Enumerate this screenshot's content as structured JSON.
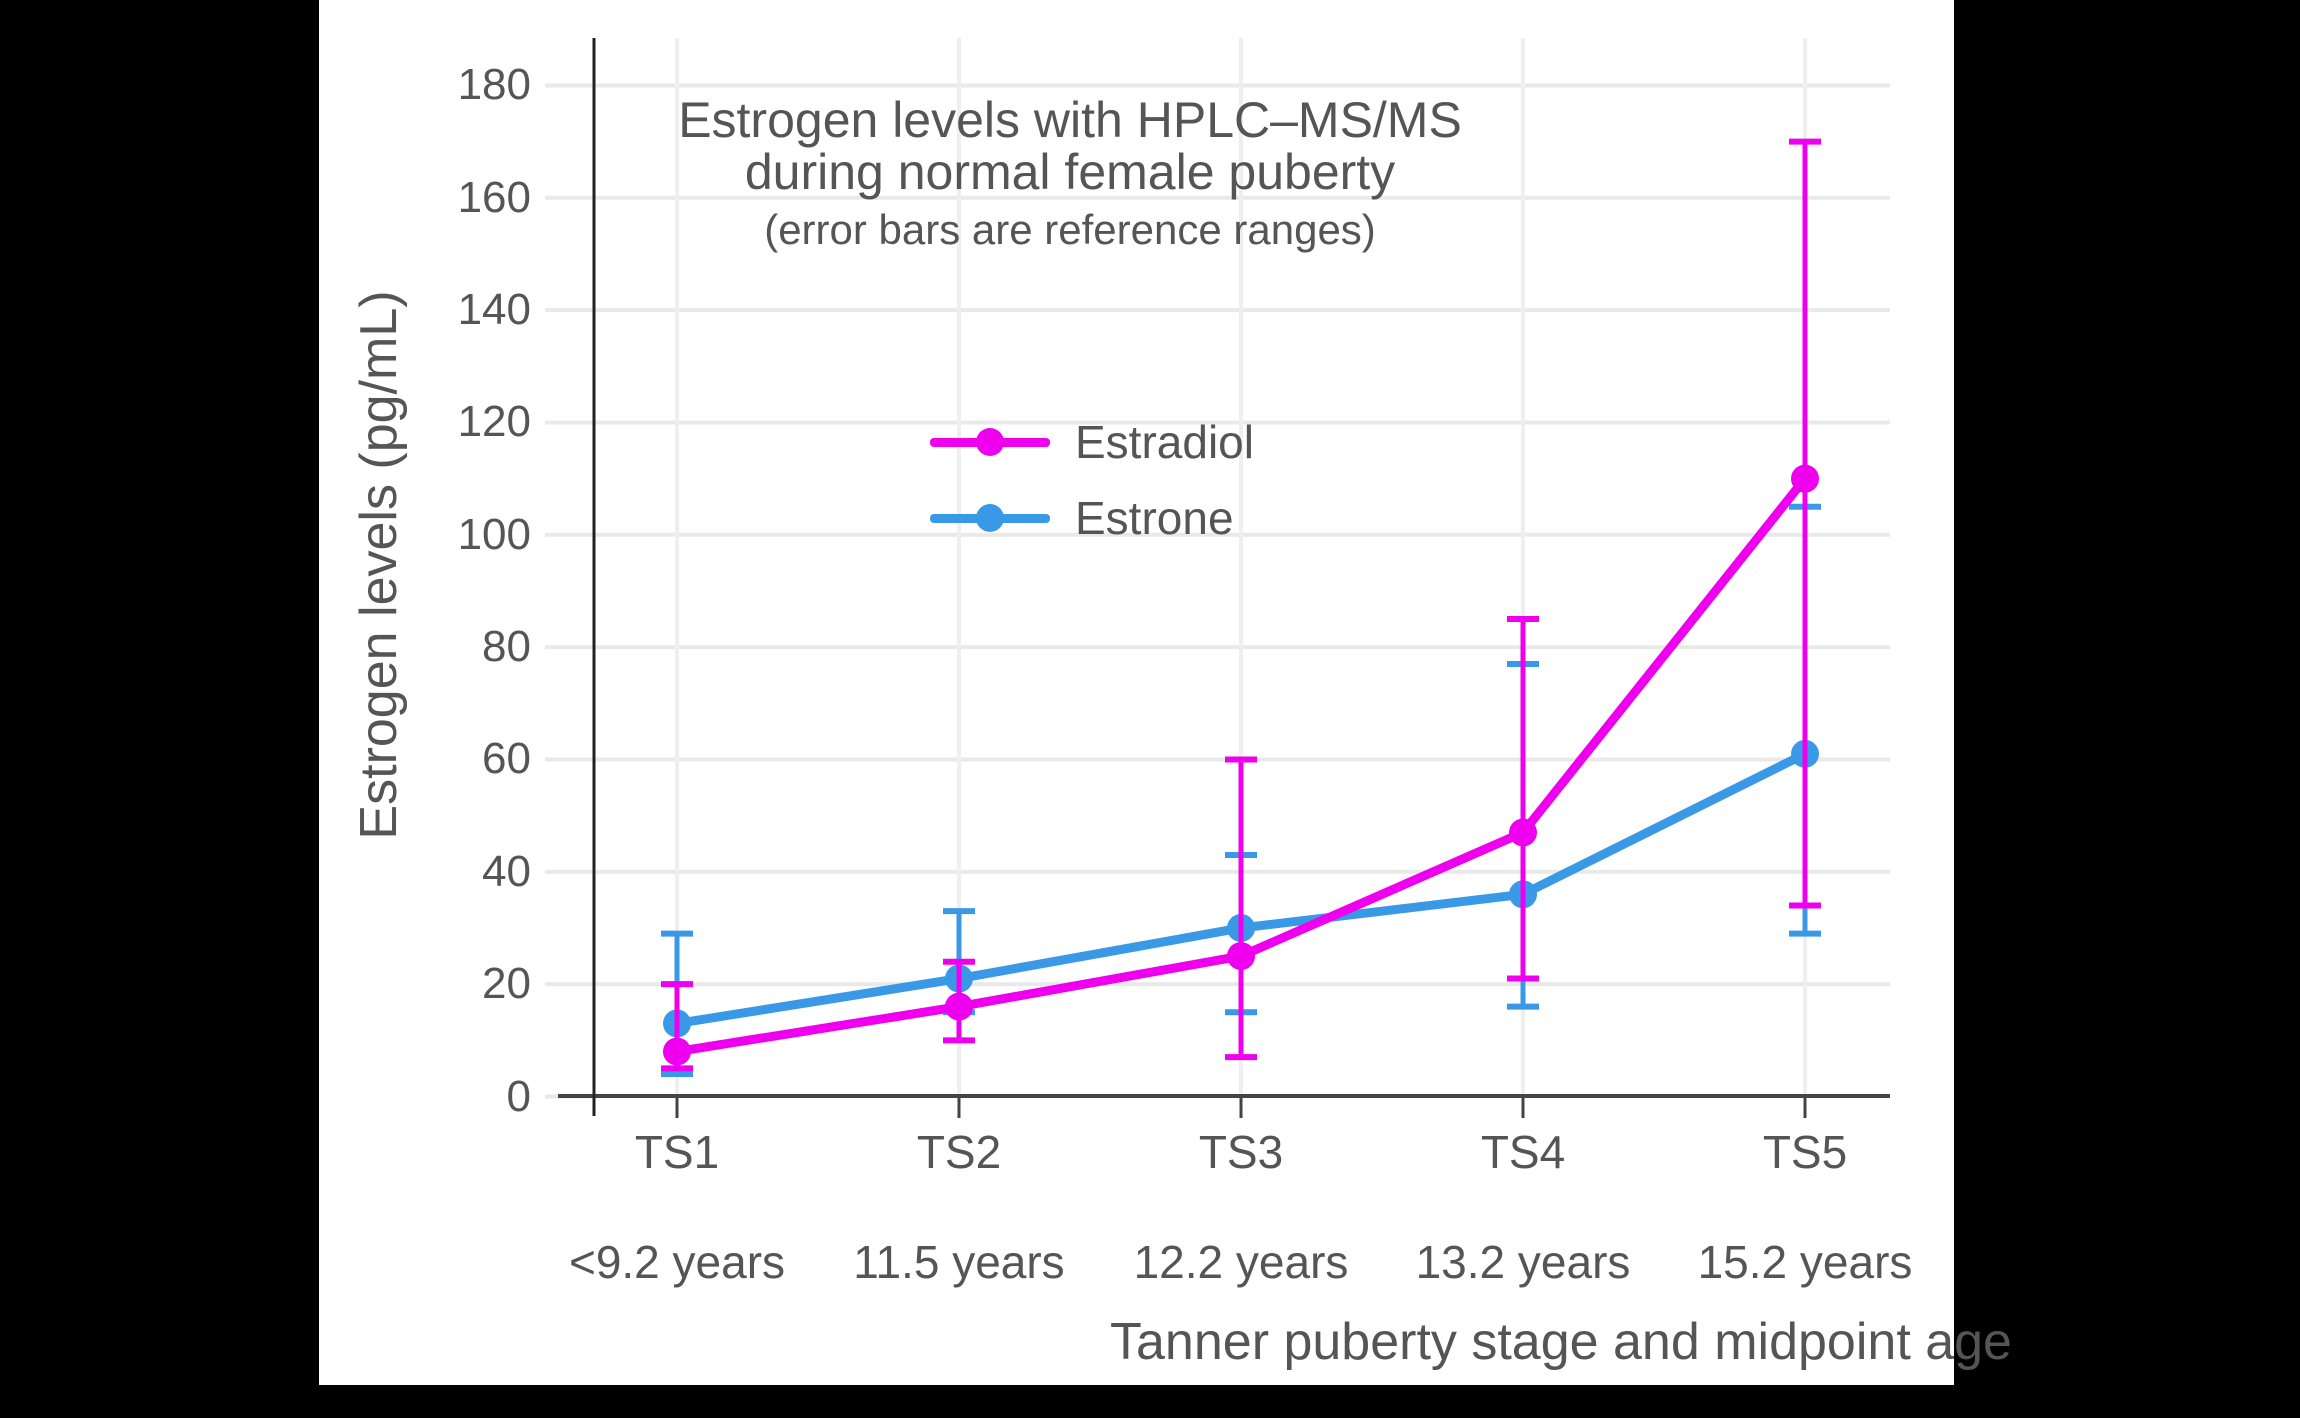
{
  "frame": {
    "background": "#000000",
    "canvas_background": "#ffffff"
  },
  "title": {
    "line1": "Estrogen levels with HPLC–MS/MS",
    "line2": "during normal female puberty",
    "subtitle": "(error bars are reference ranges)"
  },
  "axes": {
    "y_title": "Estrogen levels (pg/mL)",
    "x_title": "Tanner puberty stage and midpoint age",
    "y_tick_values": [
      0,
      20,
      40,
      60,
      80,
      100,
      120,
      140,
      160,
      180
    ],
    "text_color": "#555555",
    "grid_color": "#e9e9e9",
    "x_axis_line_color": "#444444",
    "y_axis_line_color": "#222222"
  },
  "legend": [
    {
      "label": "Estradiol",
      "color": "#ee00ee"
    },
    {
      "label": "Estrone",
      "color": "#3a99e6"
    }
  ],
  "chart_data": {
    "type": "line",
    "title": "Estrogen levels with HPLC–MS/MS during normal female puberty",
    "subtitle": "(error bars are reference ranges)",
    "xlabel": "Tanner puberty stage and midpoint age",
    "ylabel": "Estrogen levels (pg/mL)",
    "categories": [
      "TS1",
      "TS2",
      "TS3",
      "TS4",
      "TS5"
    ],
    "category_ages": [
      "<9.2 years",
      "11.5 years",
      "12.2 years",
      "13.2 years",
      "15.2 years"
    ],
    "ylim": [
      0,
      188
    ],
    "ytick_step": 20,
    "grid": true,
    "legend_position": "inside-upper-left",
    "error_bars": "reference ranges",
    "series": [
      {
        "name": "Estradiol",
        "color": "#ee00ee",
        "values": [
          8,
          16,
          25,
          47,
          110
        ],
        "error_low": [
          5,
          10,
          7,
          21,
          34
        ],
        "error_high": [
          20,
          24,
          60,
          85,
          170
        ]
      },
      {
        "name": "Estrone",
        "color": "#3a99e6",
        "values": [
          13,
          21,
          30,
          36,
          61
        ],
        "error_low": [
          4,
          15,
          15,
          16,
          29
        ],
        "error_high": [
          29,
          33,
          43,
          77,
          105
        ]
      }
    ]
  }
}
